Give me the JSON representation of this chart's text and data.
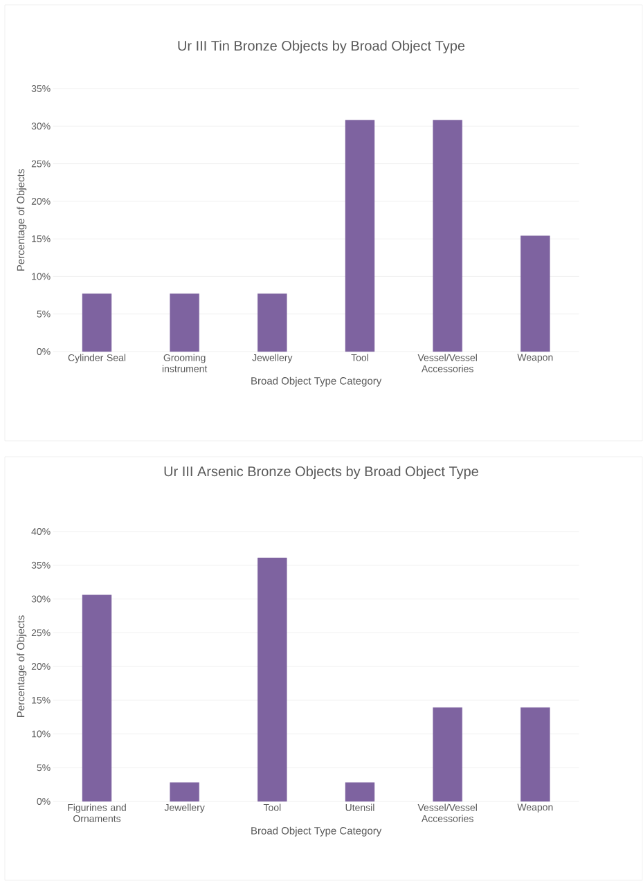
{
  "chart_data": [
    {
      "type": "bar",
      "title": "Ur III Tin Bronze Objects by Broad Object Type",
      "xlabel": "Broad Object Type Category",
      "ylabel": "Percentage of Objects",
      "categories": [
        "Cylinder Seal",
        "Grooming instrument",
        "Jewellery",
        "Tool",
        "Vessel/Vessel Accessories",
        "Weapon"
      ],
      "values": [
        7.7,
        7.7,
        7.7,
        30.8,
        30.8,
        15.4
      ],
      "color": "#7e63a0",
      "ylim": [
        0,
        35
      ],
      "yticks": [
        {
          "value": 0,
          "label": "0%"
        },
        {
          "value": 5,
          "label": "5%"
        },
        {
          "value": 10,
          "label": "10%"
        },
        {
          "value": 15,
          "label": "15%"
        },
        {
          "value": 20,
          "label": "20%"
        },
        {
          "value": 25,
          "label": "25%"
        },
        {
          "value": 30,
          "label": "30%"
        },
        {
          "value": 35,
          "label": "35%"
        }
      ],
      "grid": "y"
    },
    {
      "type": "bar",
      "title": "Ur III Arsenic Bronze Objects by Broad Object Type",
      "xlabel": "Broad Object Type Category",
      "ylabel": "Percentage of Objects",
      "categories": [
        "Figurines and Ornaments",
        "Jewellery",
        "Tool",
        "Utensil",
        "Vessel/Vessel Accessories",
        "Weapon"
      ],
      "values": [
        30.6,
        2.8,
        36.1,
        2.8,
        13.9,
        13.9
      ],
      "color": "#7e63a0",
      "ylim": [
        0,
        40
      ],
      "yticks": [
        {
          "value": 0,
          "label": "0%"
        },
        {
          "value": 5,
          "label": "5%"
        },
        {
          "value": 10,
          "label": "10%"
        },
        {
          "value": 15,
          "label": "15%"
        },
        {
          "value": 20,
          "label": "20%"
        },
        {
          "value": 25,
          "label": "25%"
        },
        {
          "value": 30,
          "label": "30%"
        },
        {
          "value": 35,
          "label": "35%"
        },
        {
          "value": 40,
          "label": "40%"
        }
      ],
      "grid": "y"
    }
  ]
}
